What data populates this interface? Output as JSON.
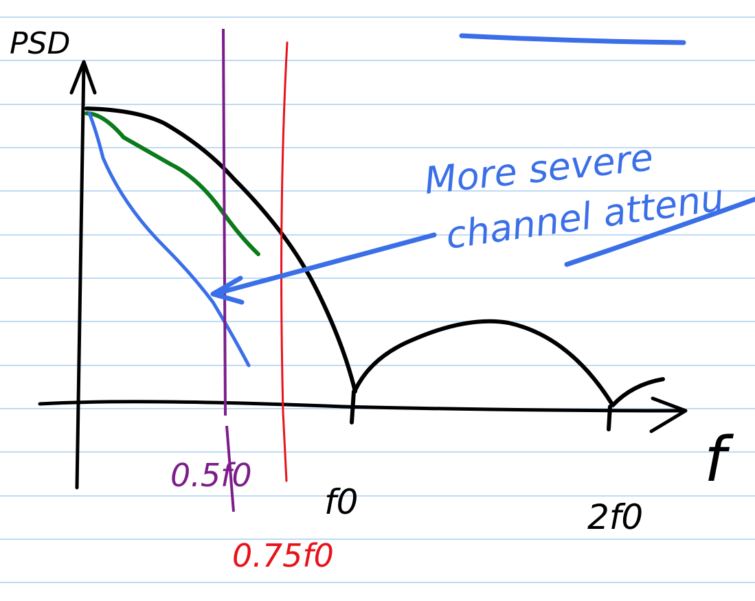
{
  "axes": {
    "y_label": "PSD",
    "x_label": "f"
  },
  "markers": [
    {
      "label": "0.5f0"
    },
    {
      "label": "0.75f0"
    },
    {
      "label": "f0"
    },
    {
      "label": "2f0"
    }
  ],
  "annotation": {
    "lines": [
      "More severe",
      "channel attenu"
    ]
  }
}
